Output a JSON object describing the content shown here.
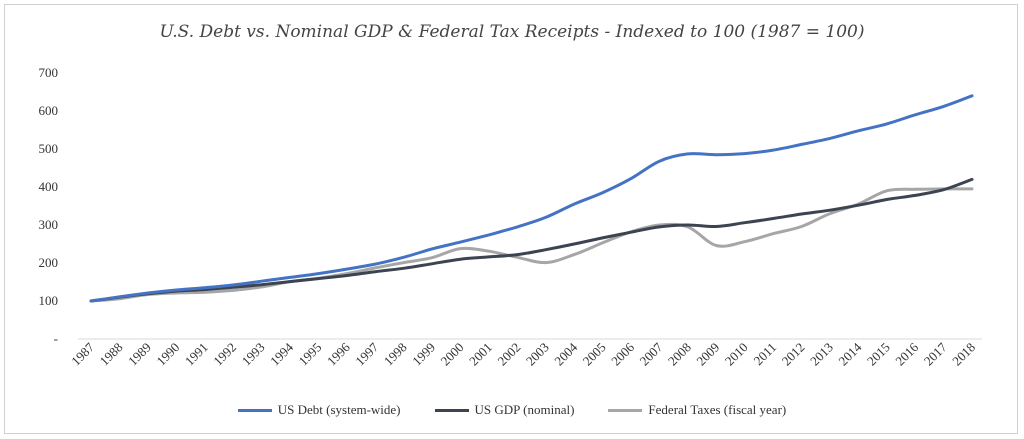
{
  "chart_data": {
    "type": "line",
    "title": "U.S. Debt vs. Nominal GDP & Federal Tax Receipts - Indexed to 100 (1987 = 100)",
    "xlabel": "",
    "ylabel": "",
    "categories": [
      "1987",
      "1988",
      "1989",
      "1990",
      "1991",
      "1992",
      "1993",
      "1994",
      "1995",
      "1996",
      "1997",
      "1998",
      "1999",
      "2000",
      "2001",
      "2002",
      "2003",
      "2004",
      "2005",
      "2006",
      "2007",
      "2008",
      "2009",
      "2010",
      "2011",
      "2012",
      "2013",
      "2014",
      "2015",
      "2016",
      "2017",
      "2018"
    ],
    "y_ticks": [
      "-",
      "100",
      "200",
      "300",
      "400",
      "500",
      "600",
      "700"
    ],
    "ylim": [
      0,
      700
    ],
    "grid": false,
    "legend_position": "bottom",
    "series": [
      {
        "name": "US Debt (system-wide)",
        "color": "#4472c4",
        "values": [
          100,
          111,
          121,
          129,
          135,
          142,
          152,
          162,
          172,
          184,
          197,
          215,
          237,
          255,
          274,
          295,
          320,
          355,
          385,
          422,
          468,
          487,
          485,
          488,
          497,
          512,
          528,
          548,
          566,
          590,
          612,
          640
        ]
      },
      {
        "name": "US GDP (nominal)",
        "color": "#3b4450",
        "values": [
          100,
          110,
          119,
          126,
          130,
          136,
          143,
          151,
          159,
          167,
          177,
          186,
          198,
          210,
          216,
          222,
          235,
          250,
          266,
          281,
          295,
          300,
          296,
          306,
          317,
          329,
          339,
          352,
          367,
          378,
          393,
          420
        ]
      },
      {
        "name": "Federal Taxes (fiscal year)",
        "color": "#a6a6a6",
        "values": [
          100,
          106,
          117,
          121,
          123,
          128,
          137,
          151,
          160,
          172,
          187,
          201,
          214,
          238,
          231,
          215,
          201,
          222,
          253,
          282,
          300,
          295,
          246,
          256,
          277,
          296,
          330,
          355,
          390,
          394,
          395,
          395
        ]
      }
    ]
  }
}
